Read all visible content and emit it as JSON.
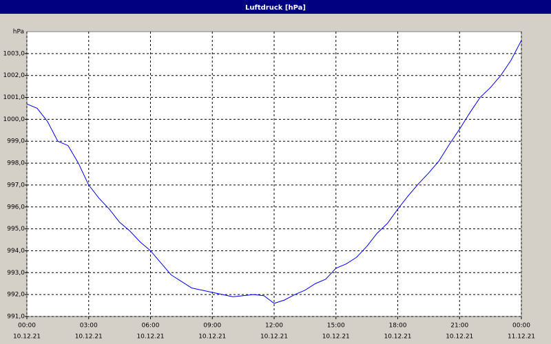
{
  "chart_data": {
    "type": "line",
    "title": "Luftdruck [hPa]",
    "y_unit": "hPa",
    "x": [
      0,
      0.5,
      1,
      1.5,
      2,
      2.5,
      3,
      3.5,
      4,
      4.5,
      5,
      5.5,
      6,
      6.5,
      7,
      7.5,
      8,
      8.5,
      9,
      9.5,
      10,
      10.5,
      11,
      11.5,
      12,
      12.5,
      13,
      13.5,
      14,
      14.5,
      15,
      15.5,
      16,
      16.5,
      17,
      17.5,
      18,
      18.5,
      19,
      19.5,
      20,
      20.5,
      21,
      21.5,
      22,
      22.5,
      23,
      23.5,
      24
    ],
    "series": [
      {
        "name": "Luftdruck",
        "color": "#0000ff",
        "values": [
          1000.7,
          1000.5,
          999.9,
          999.0,
          998.8,
          998.0,
          997.0,
          996.4,
          995.9,
          995.3,
          994.9,
          994.4,
          994.0,
          993.45,
          992.9,
          992.6,
          992.3,
          992.2,
          992.1,
          992.0,
          991.9,
          991.95,
          992.0,
          991.95,
          991.6,
          991.75,
          992.0,
          992.2,
          992.5,
          992.7,
          993.2,
          993.4,
          993.7,
          994.2,
          994.8,
          995.25,
          995.9,
          996.5,
          997.05,
          997.55,
          998.1,
          998.85,
          999.55,
          1000.3,
          1001.0,
          1001.45,
          1002.0,
          1002.7,
          1003.6
        ]
      }
    ],
    "xlim": [
      0,
      24
    ],
    "xticks": [
      {
        "value": 0,
        "label": "00:00",
        "date": "10.12.21"
      },
      {
        "value": 3,
        "label": "03:00",
        "date": "10.12.21"
      },
      {
        "value": 6,
        "label": "06:00",
        "date": "10.12.21"
      },
      {
        "value": 9,
        "label": "09:00",
        "date": "10.12.21"
      },
      {
        "value": 12,
        "label": "12:00",
        "date": "10.12.21"
      },
      {
        "value": 15,
        "label": "15:00",
        "date": "10.12.21"
      },
      {
        "value": 18,
        "label": "18:00",
        "date": "10.12.21"
      },
      {
        "value": 21,
        "label": "21:00",
        "date": "10.12.21"
      },
      {
        "value": 24,
        "label": "00:00",
        "date": "11.12.21"
      }
    ],
    "ylim": [
      991,
      1004
    ],
    "yticks": [
      {
        "value": 991,
        "label": "991,0"
      },
      {
        "value": 992,
        "label": "992,0"
      },
      {
        "value": 993,
        "label": "993,0"
      },
      {
        "value": 994,
        "label": "994,0"
      },
      {
        "value": 995,
        "label": "995,0"
      },
      {
        "value": 996,
        "label": "996,0"
      },
      {
        "value": 997,
        "label": "997,0"
      },
      {
        "value": 998,
        "label": "998,0"
      },
      {
        "value": 999,
        "label": "999,0"
      },
      {
        "value": 1000,
        "label": "1000,0"
      },
      {
        "value": 1001,
        "label": "1001,0"
      },
      {
        "value": 1002,
        "label": "1002,0"
      },
      {
        "value": 1003,
        "label": "1003,0"
      }
    ],
    "grid": true
  }
}
